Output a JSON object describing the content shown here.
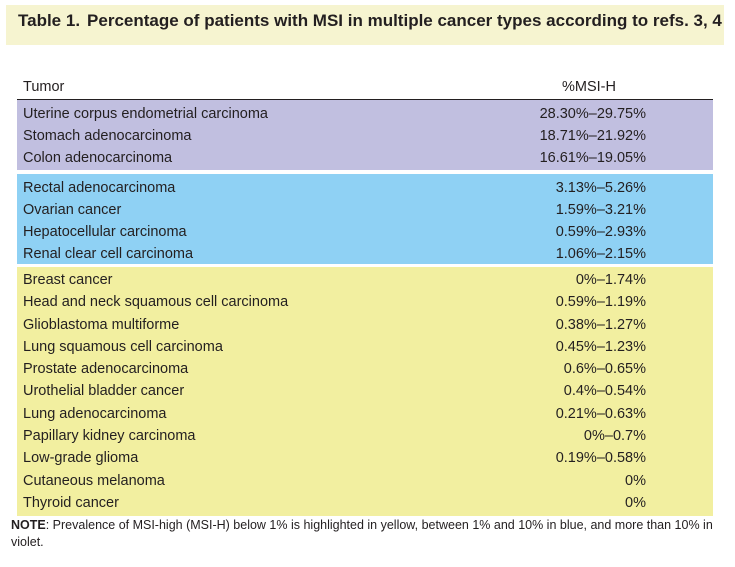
{
  "title": {
    "label": "Table 1.",
    "text": "Percentage of patients with MSI in multiple cancer types according to refs. 3, 4"
  },
  "header": {
    "tumor": "Tumor",
    "msi": "%MSI-H"
  },
  "groups": [
    {
      "color": "#c1bfe0",
      "rows": [
        {
          "tumor": "Uterine corpus endometrial carcinoma",
          "msi": "28.30%–29.75%"
        },
        {
          "tumor": "Stomach adenocarcinoma",
          "msi": "18.71%–21.92%"
        },
        {
          "tumor": "Colon adenocarcinoma",
          "msi": "16.61%–19.05%"
        }
      ]
    },
    {
      "color": "#8fd1f4",
      "rows": [
        {
          "tumor": "Rectal adenocarcinoma",
          "msi": "3.13%–5.26%"
        },
        {
          "tumor": "Ovarian cancer",
          "msi": "1.59%–3.21%"
        },
        {
          "tumor": "Hepatocellular carcinoma",
          "msi": "0.59%–2.93%"
        },
        {
          "tumor": "Renal clear cell carcinoma",
          "msi": "1.06%–2.15%"
        }
      ]
    },
    {
      "color": "#f2efa0",
      "rows": [
        {
          "tumor": "Breast cancer",
          "msi": "0%–1.74%"
        },
        {
          "tumor": "Head and neck squamous cell carcinoma",
          "msi": "0.59%–1.19%"
        },
        {
          "tumor": "Glioblastoma multiforme",
          "msi": "0.38%–1.27%"
        },
        {
          "tumor": "Lung squamous cell carcinoma",
          "msi": "0.45%–1.23%"
        },
        {
          "tumor": "Prostate adenocarcinoma",
          "msi": "0.6%–0.65%"
        },
        {
          "tumor": "Urothelial bladder cancer",
          "msi": "0.4%–0.54%"
        },
        {
          "tumor": "Lung adenocarcinoma",
          "msi": "0.21%–0.63%"
        },
        {
          "tumor": "Papillary kidney carcinoma",
          "msi": "0%–0.7%"
        },
        {
          "tumor": "Low-grade glioma",
          "msi": "0.19%–0.58%"
        },
        {
          "tumor": "Cutaneous melanoma",
          "msi": "0%"
        },
        {
          "tumor": "Thyroid cancer",
          "msi": "0%"
        }
      ]
    }
  ],
  "note": {
    "label": "NOTE",
    "text": ": Prevalence of MSI-high (MSI-H) below 1% is highlighted in yellow, between 1% and 10% in blue, and more than 10% in violet."
  }
}
